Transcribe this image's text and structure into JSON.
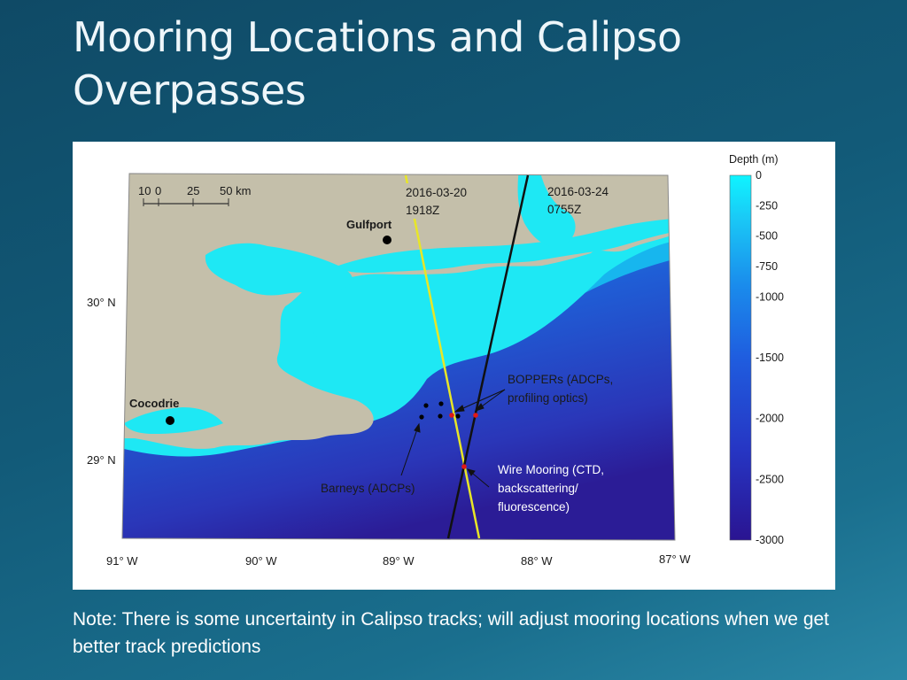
{
  "slide": {
    "title": "Mooring Locations and Calipso Overpasses",
    "note": "Note: There is some uncertainty in Calipso tracks; will adjust mooring locations when we get better track predictions"
  },
  "map": {
    "scale_bar": {
      "ticks": [
        "10",
        "0",
        "25",
        "50 km"
      ]
    },
    "cities": [
      "Gulfport",
      "Cocodrie"
    ],
    "lat_labels": [
      "30° N",
      "29° N"
    ],
    "lon_labels": [
      "91° W",
      "90° W",
      "89° W",
      "88° W",
      "87° W"
    ],
    "overpasses": [
      {
        "date": "2016-03-20",
        "time": "1918Z",
        "color": "#e8e627"
      },
      {
        "date": "2016-03-24",
        "time": "0755Z",
        "color": "#111111"
      }
    ],
    "annotations": {
      "boppers": [
        "BOPPERs (ADCPs,",
        "profiling optics)"
      ],
      "wire_mooring": [
        "Wire Mooring (CTD,",
        "backscattering/",
        "fluorescence)"
      ],
      "barneys": "Barneys (ADCPs)"
    },
    "colorbar": {
      "title": "Depth (m)",
      "ticks": [
        "0",
        "-250",
        "-500",
        "-750",
        "-1000",
        "-1500",
        "-2000",
        "-2500",
        "-3000"
      ]
    },
    "colors": {
      "land": "#c4bfaa",
      "shelf": "#1ee8f4",
      "deep": "#2b1c96",
      "mooring_red": "#e01818"
    }
  }
}
